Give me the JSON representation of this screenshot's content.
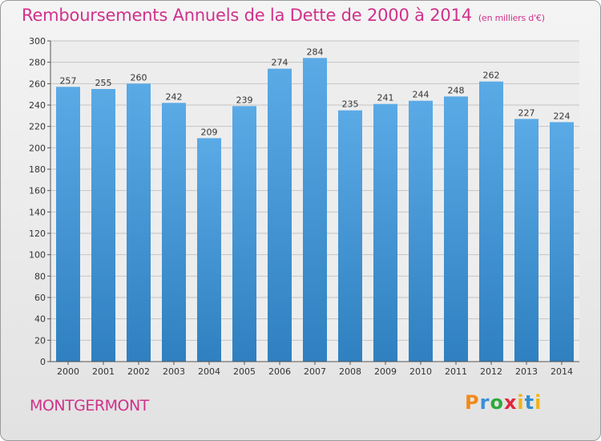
{
  "header": {
    "title": "Remboursements Annuels de la Dette de 2000 à 2014",
    "unit": "(en milliers d'€)"
  },
  "footer": {
    "commune": "MONTGERMONT",
    "logo": "Proxiti"
  },
  "colors": {
    "accent": "#d0318b",
    "bar_top": "#5aaae6",
    "bar_bottom": "#2f80c0"
  },
  "chart_data": {
    "type": "bar",
    "title": "Remboursements Annuels de la Dette de 2000 à 2014",
    "xlabel": "",
    "ylabel": "",
    "ylim": [
      0,
      300
    ],
    "yticks": [
      0,
      20,
      40,
      60,
      80,
      100,
      120,
      140,
      160,
      180,
      200,
      220,
      240,
      260,
      280,
      300
    ],
    "categories": [
      "2000",
      "2001",
      "2002",
      "2003",
      "2004",
      "2005",
      "2006",
      "2007",
      "2008",
      "2009",
      "2010",
      "2011",
      "2012",
      "2013",
      "2014"
    ],
    "values": [
      257,
      255,
      260,
      242,
      209,
      239,
      274,
      284,
      235,
      241,
      244,
      248,
      262,
      227,
      224
    ],
    "grid": true
  }
}
